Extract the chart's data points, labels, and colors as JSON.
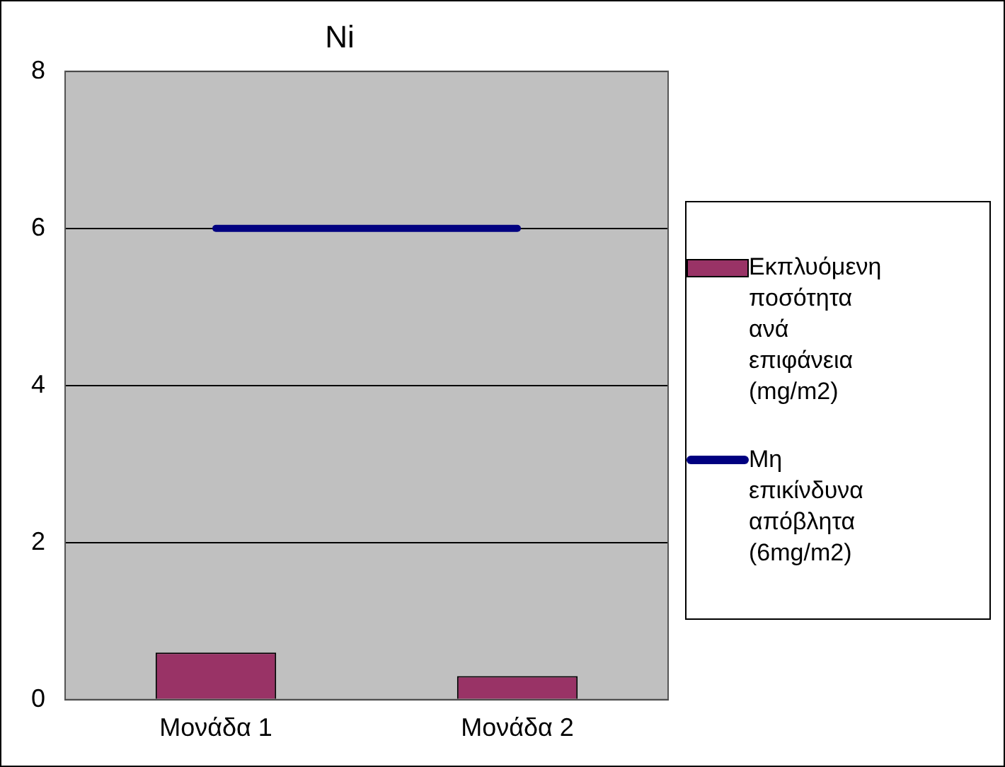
{
  "chart_data": {
    "type": "bar",
    "title": "Ni",
    "categories": [
      "Μονάδα 1",
      "Μονάδα 2"
    ],
    "series": [
      {
        "name": "Εκπλυόμενη ποσότητα ανά επιφάνεια (mg/m2)",
        "color": "#993366",
        "values": [
          0.6,
          0.3
        ]
      },
      {
        "name": "Μη επικίνδυνα απόβλητα (6mg/m2)",
        "type": "line",
        "color": "#000080",
        "values": [
          6,
          6
        ]
      }
    ],
    "ylim": [
      0,
      8
    ],
    "yticks": [
      0,
      2,
      4,
      6,
      8
    ],
    "grid": "y",
    "legend": "right",
    "marker": "none"
  }
}
